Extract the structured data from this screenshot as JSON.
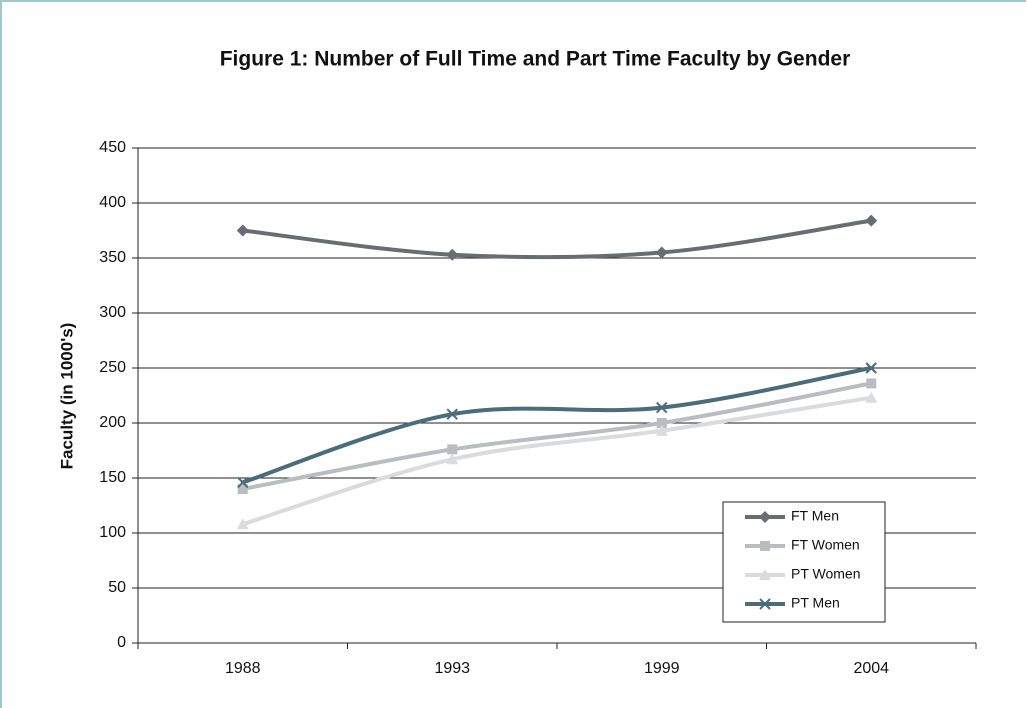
{
  "chart_data": {
    "type": "line",
    "title": "Figure 1: Number of Full Time and Part Time Faculty by Gender",
    "y_label": "Faculty (in 1000's)",
    "categories": [
      "1988",
      "1993",
      "1999",
      "2004"
    ],
    "series": [
      {
        "name": "FT Men",
        "color": "#676d72",
        "marker": "diamond",
        "values": [
          375,
          353,
          355,
          384
        ]
      },
      {
        "name": "FT Women",
        "color": "#b9bdc1",
        "marker": "square",
        "values": [
          140,
          176,
          200,
          236
        ]
      },
      {
        "name": "PT Women",
        "color": "#d9dbdc",
        "marker": "triangle",
        "values": [
          108,
          167,
          193,
          223
        ]
      },
      {
        "name": "PT Men",
        "color": "#4b6c7b",
        "marker": "x",
        "values": [
          146,
          208,
          214,
          250
        ]
      }
    ],
    "ylim": [
      0,
      450
    ],
    "yticks": [
      0,
      50,
      100,
      150,
      200,
      250,
      300,
      350,
      400,
      450
    ],
    "grid": true,
    "legend": "lower right",
    "smooth": true
  }
}
